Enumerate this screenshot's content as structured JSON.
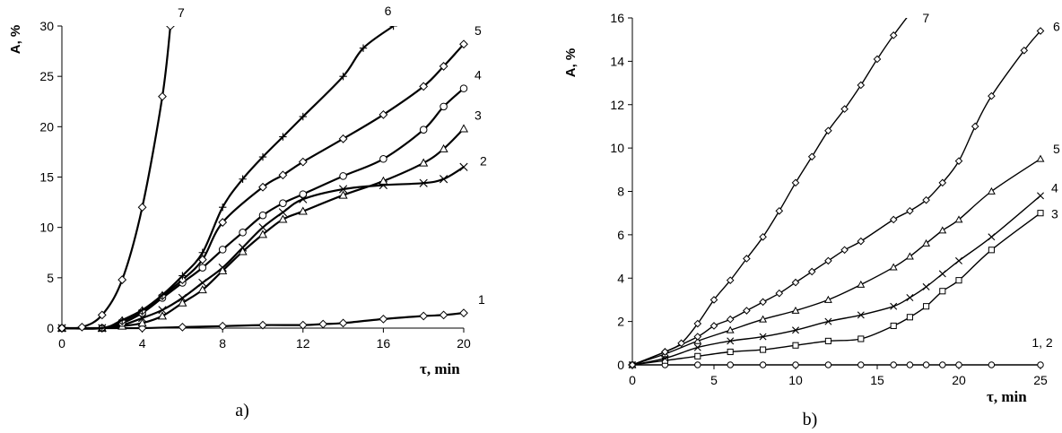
{
  "chart_data": [
    {
      "panel_label": "a)",
      "type": "line",
      "ylabel": "A, %",
      "xlabel": "τ, min",
      "xlim": [
        0,
        20
      ],
      "ylim": [
        0,
        30
      ],
      "xticks": [
        0,
        4,
        8,
        12,
        16,
        20
      ],
      "yticks": [
        0,
        5,
        10,
        15,
        20,
        25,
        30
      ],
      "grid": false,
      "series": [
        {
          "name": "1",
          "marker": "diamond",
          "x": [
            0,
            2,
            4,
            6,
            8,
            10,
            12,
            13,
            14,
            16,
            18,
            19,
            20
          ],
          "y": [
            0,
            0,
            0,
            0.1,
            0.2,
            0.3,
            0.3,
            0.4,
            0.5,
            0.9,
            1.2,
            1.3,
            1.5
          ]
        },
        {
          "name": "2",
          "marker": "x",
          "x": [
            0,
            2,
            3,
            4,
            5,
            6,
            7,
            8,
            9,
            10,
            11,
            12,
            14,
            16,
            18,
            19,
            20
          ],
          "y": [
            0,
            0,
            0.3,
            1,
            1.8,
            3,
            4.5,
            6,
            8,
            10,
            11.5,
            12.8,
            13.8,
            14.2,
            14.4,
            14.8,
            16
          ]
        },
        {
          "name": "3",
          "marker": "triangle",
          "x": [
            0,
            2,
            3,
            4,
            5,
            6,
            7,
            8,
            9,
            10,
            11,
            12,
            14,
            16,
            18,
            19,
            20
          ],
          "y": [
            0,
            0,
            0.2,
            0.5,
            1.2,
            2.5,
            3.8,
            5.7,
            7.6,
            9.3,
            10.8,
            11.6,
            13.2,
            14.6,
            16.4,
            17.8,
            19.8
          ]
        },
        {
          "name": "4",
          "marker": "circle",
          "x": [
            0,
            2,
            3,
            4,
            5,
            6,
            7,
            8,
            9,
            10,
            11,
            12,
            14,
            16,
            18,
            19,
            20
          ],
          "y": [
            0,
            0,
            0.5,
            1.5,
            3,
            4.5,
            6,
            7.8,
            9.5,
            11.2,
            12.4,
            13.3,
            15.1,
            16.8,
            19.7,
            22,
            23.8
          ]
        },
        {
          "name": "5",
          "marker": "diamond",
          "x": [
            0,
            2,
            3,
            4,
            5,
            6,
            7,
            8,
            10,
            11,
            12,
            14,
            16,
            18,
            19,
            20
          ],
          "y": [
            0,
            0,
            0.7,
            1.7,
            3.2,
            4.8,
            6.8,
            10.5,
            14,
            15.2,
            16.5,
            18.8,
            21.2,
            24,
            26,
            28.2
          ]
        },
        {
          "name": "6",
          "marker": "plus",
          "x": [
            0,
            2,
            3,
            4,
            5,
            6,
            7,
            8,
            9,
            10,
            11,
            12,
            14,
            15,
            16.5
          ],
          "y": [
            0,
            0,
            0.8,
            1.8,
            3.3,
            5.2,
            7.5,
            12,
            14.8,
            17,
            19,
            21,
            25,
            27.8,
            30
          ]
        },
        {
          "name": "7",
          "marker": "diamond",
          "x": [
            0,
            1,
            2,
            3,
            4,
            5,
            5.4
          ],
          "y": [
            0,
            0.1,
            1.3,
            4.8,
            12,
            23,
            30
          ]
        }
      ]
    },
    {
      "panel_label": "b)",
      "type": "line",
      "ylabel": "A, %",
      "xlabel": "τ, min",
      "xlim": [
        0,
        25
      ],
      "ylim": [
        0,
        16
      ],
      "xticks": [
        0,
        5,
        10,
        15,
        20,
        25
      ],
      "yticks": [
        0,
        2,
        4,
        6,
        8,
        10,
        12,
        14,
        16
      ],
      "grid": false,
      "series": [
        {
          "name": "1, 2",
          "marker": "circle",
          "x": [
            0,
            2,
            4,
            6,
            8,
            10,
            12,
            14,
            16,
            17,
            18,
            19,
            20,
            22,
            25
          ],
          "y": [
            0,
            0,
            0,
            0,
            0,
            0,
            0,
            0,
            0,
            0,
            0,
            0,
            0,
            0,
            0
          ]
        },
        {
          "name": "3",
          "marker": "square",
          "x": [
            0,
            2,
            4,
            6,
            8,
            10,
            12,
            14,
            16,
            17,
            18,
            19,
            20,
            22,
            25
          ],
          "y": [
            0,
            0.2,
            0.4,
            0.6,
            0.7,
            0.9,
            1.1,
            1.2,
            1.8,
            2.2,
            2.7,
            3.4,
            3.9,
            5.3,
            7
          ]
        },
        {
          "name": "4",
          "marker": "x",
          "x": [
            0,
            2,
            4,
            6,
            8,
            10,
            12,
            14,
            16,
            17,
            18,
            19,
            20,
            22,
            25
          ],
          "y": [
            0,
            0.3,
            0.8,
            1.1,
            1.3,
            1.6,
            2,
            2.3,
            2.7,
            3.1,
            3.6,
            4.2,
            4.8,
            5.9,
            7.8
          ]
        },
        {
          "name": "5",
          "marker": "triangle",
          "x": [
            0,
            2,
            4,
            6,
            8,
            10,
            12,
            14,
            16,
            17,
            18,
            19,
            20,
            22,
            25
          ],
          "y": [
            0,
            0.5,
            1.1,
            1.6,
            2.1,
            2.5,
            3,
            3.7,
            4.5,
            5,
            5.6,
            6.2,
            6.7,
            8,
            9.5
          ]
        },
        {
          "name": "6",
          "marker": "diamond",
          "x": [
            0,
            2,
            4,
            5,
            6,
            7,
            8,
            9,
            10,
            11,
            12,
            13,
            14,
            16,
            17,
            18,
            19,
            20,
            21,
            22,
            24,
            25
          ],
          "y": [
            0,
            0.6,
            1.3,
            1.8,
            2.1,
            2.5,
            2.9,
            3.3,
            3.8,
            4.3,
            4.8,
            5.3,
            5.7,
            6.7,
            7.1,
            7.6,
            8.4,
            9.4,
            11,
            12.4,
            14.5,
            15.4
          ]
        },
        {
          "name": "7",
          "marker": "diamond",
          "x": [
            0,
            2,
            3,
            4,
            5,
            6,
            7,
            8,
            9,
            10,
            11,
            12,
            13,
            14,
            15,
            16,
            17
          ],
          "y": [
            0,
            0.6,
            1,
            1.9,
            3,
            3.9,
            4.9,
            5.9,
            7.1,
            8.4,
            9.6,
            10.8,
            11.8,
            12.9,
            14.1,
            15.2,
            16.2
          ]
        }
      ]
    }
  ]
}
